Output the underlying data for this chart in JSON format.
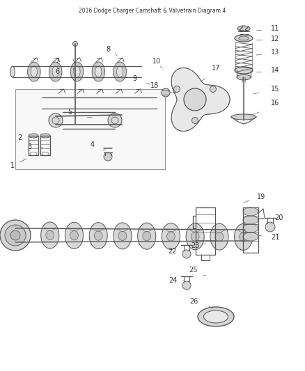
{
  "title": "2016 Dodge Charger Camshaft & Valvetrain Diagram 4",
  "background_color": "#ffffff",
  "fig_width": 4.38,
  "fig_height": 5.33,
  "dpi": 100,
  "label_color": "#333333",
  "label_fontsize": 7.0,
  "component_color": "#555555",
  "component_linewidth": 0.9,
  "leader_color": "#777777",
  "leader_lw": 0.6
}
